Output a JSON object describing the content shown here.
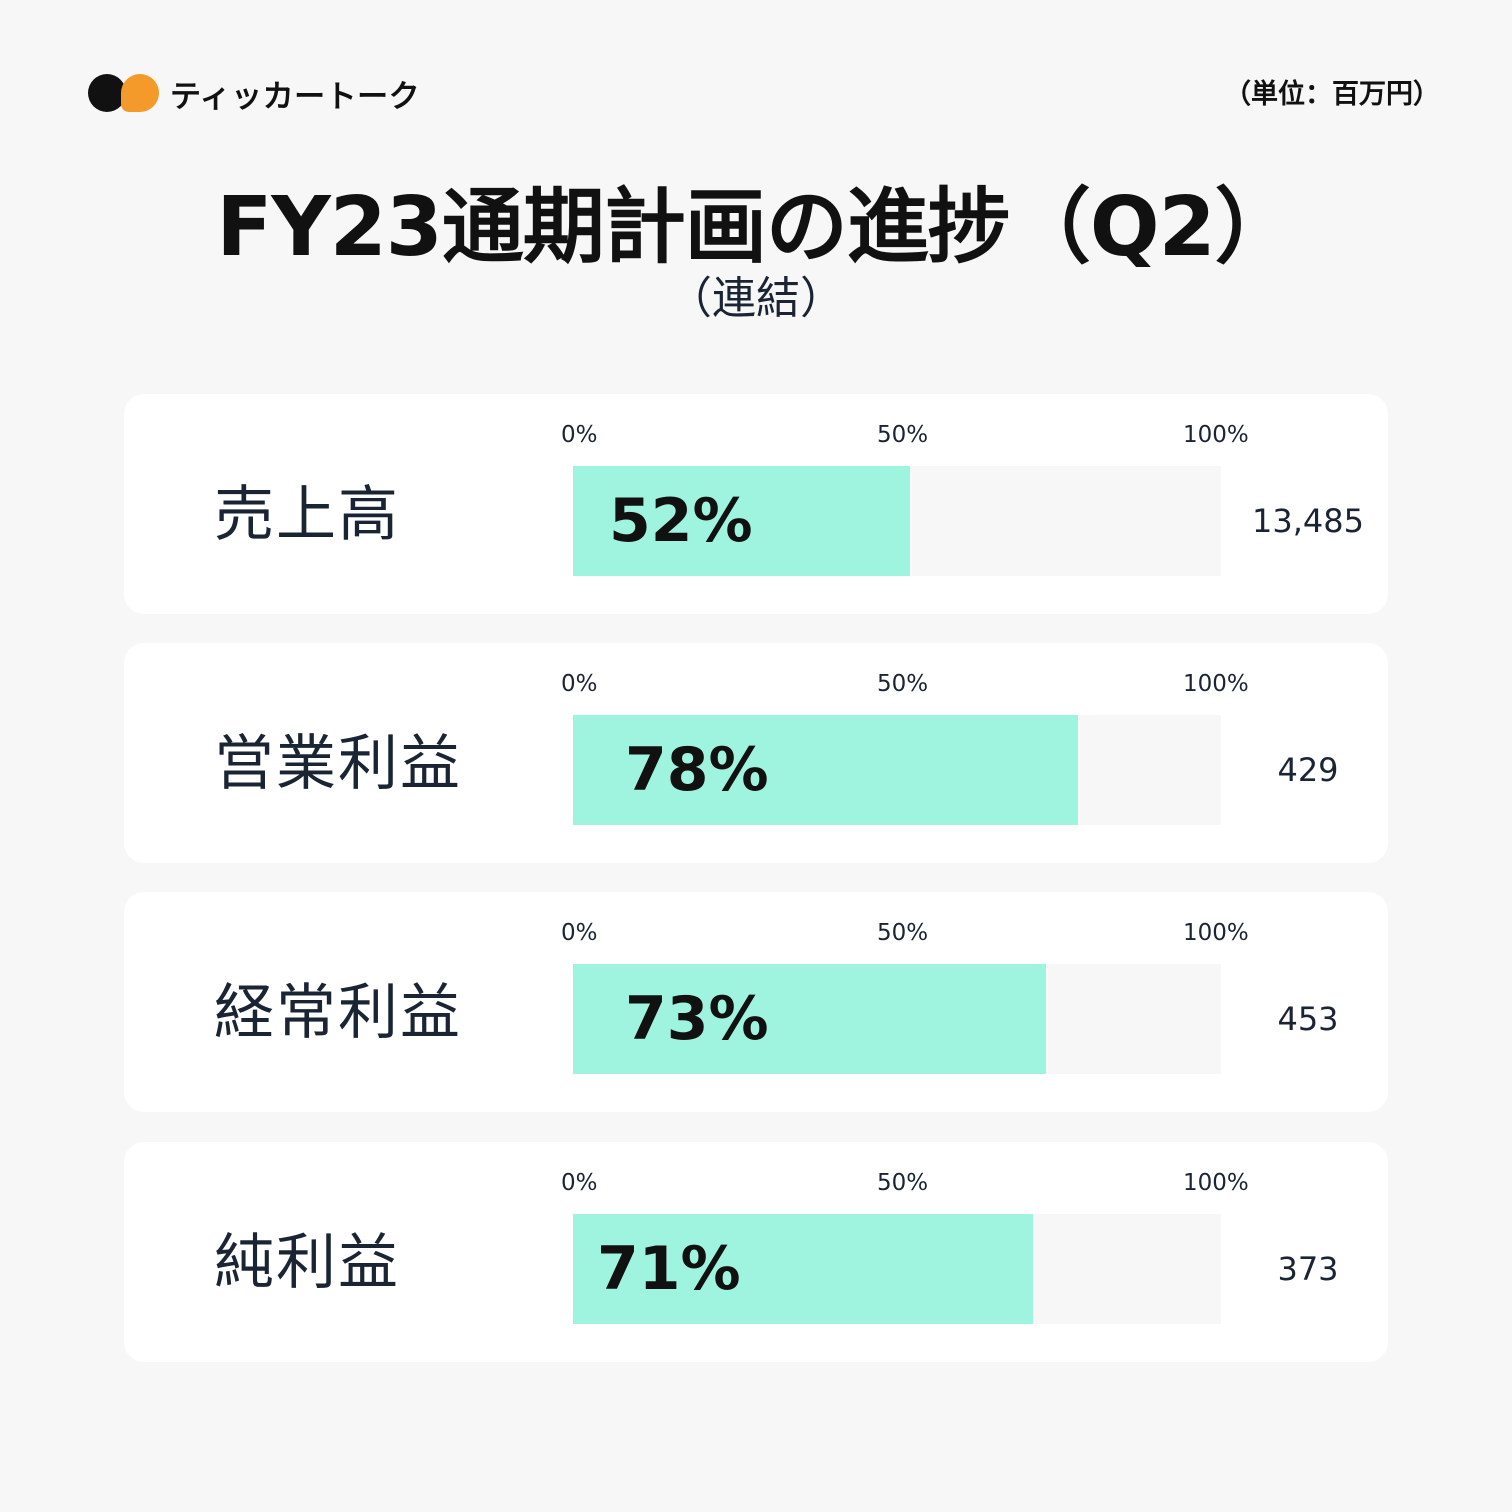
{
  "brand": {
    "name": "ティッカートーク",
    "colors": {
      "black": "#111111",
      "orange": "#f39a2a"
    }
  },
  "unit_label": "（単位：百万円）",
  "title": "FY23通期計画の進捗（Q2）",
  "subtitle": "（連結）",
  "colors": {
    "background": "#f7f7f7",
    "card": "#ffffff",
    "bar_fill": "#9ff4df",
    "bar_track": "#f7f7f7",
    "text": "#1a2433"
  },
  "chart_data": {
    "type": "bar",
    "orientation": "horizontal",
    "xlim": [
      0,
      100
    ],
    "ticks": [
      "0%",
      "50%",
      "100%"
    ],
    "categories": [
      "売上高",
      "営業利益",
      "経常利益",
      "純利益"
    ],
    "values": [
      52,
      78,
      73,
      71
    ],
    "value_labels": [
      "52%",
      "78%",
      "73%",
      "71%"
    ],
    "amounts": [
      "13,485",
      "429",
      "453",
      "373"
    ],
    "grid": false,
    "legend": "none"
  }
}
